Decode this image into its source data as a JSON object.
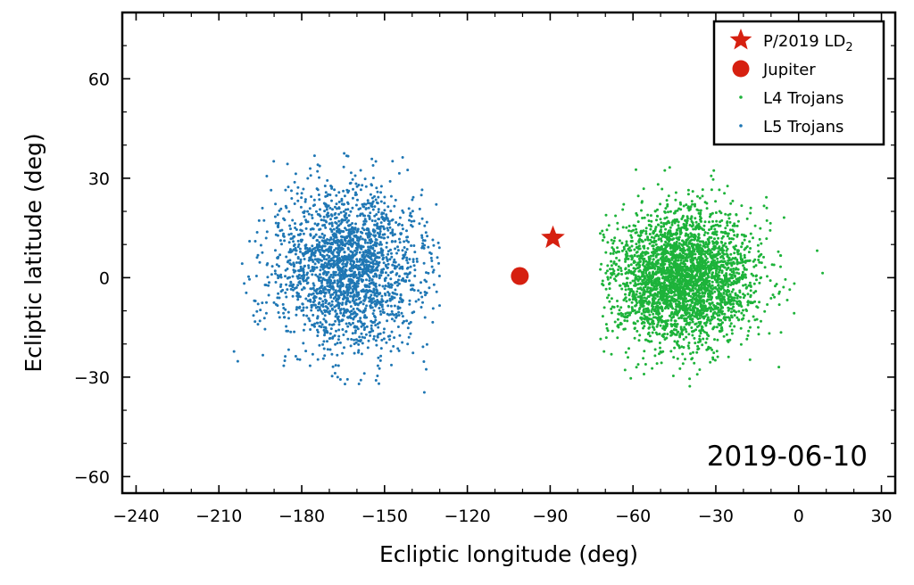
{
  "chart_data": {
    "type": "scatter",
    "xlabel": "Ecliptic longitude (deg)",
    "ylabel": "Ecliptic latitude (deg)",
    "xlim": [
      -245,
      35
    ],
    "ylim": [
      -65,
      80
    ],
    "xticks": [
      -240,
      -210,
      -180,
      -150,
      -120,
      -90,
      -60,
      -30,
      0,
      30
    ],
    "yticks": [
      -60,
      -30,
      0,
      30,
      60
    ],
    "xtick_labels": [
      "−240",
      "−210",
      "−180",
      "−150",
      "−120",
      "−90",
      "−60",
      "−30",
      "0",
      "30"
    ],
    "ytick_labels": [
      "−60",
      "−30",
      "0",
      "30",
      "60"
    ],
    "annotation": "2019-06-10",
    "grid": false,
    "legend_position": "top-right",
    "series": [
      {
        "name": "P/2019 LD₂",
        "marker": "star",
        "color": "#d62010",
        "points": [
          [
            -89,
            12
          ]
        ]
      },
      {
        "name": "Jupiter",
        "marker": "circle",
        "color": "#d62010",
        "points": [
          [
            -101,
            0.5
          ]
        ]
      },
      {
        "name": "L4 Trojans",
        "marker": "dot",
        "color": "#1db33a",
        "cloud": {
          "center": [
            -42,
            0
          ],
          "spread": [
            13,
            10
          ],
          "x_range": [
            -72,
            10
          ],
          "y_range": [
            -38,
            36
          ],
          "count": 3200
        }
      },
      {
        "name": "L5 Trojans",
        "marker": "dot",
        "color": "#1f77b4",
        "cloud": {
          "center": [
            -163,
            3
          ],
          "spread": [
            13,
            12
          ],
          "x_range": [
            -205,
            -130
          ],
          "y_range": [
            -39,
            38
          ],
          "count": 2200
        }
      }
    ]
  },
  "legend": {
    "items": [
      {
        "label": "P/2019 LD",
        "sub": "2",
        "color": "#d62010",
        "marker": "star"
      },
      {
        "label": "Jupiter",
        "sub": "",
        "color": "#d62010",
        "marker": "circle"
      },
      {
        "label": "L4 Trojans",
        "sub": "",
        "color": "#1db33a",
        "marker": "dot"
      },
      {
        "label": "L5 Trojans",
        "sub": "",
        "color": "#1f77b4",
        "marker": "dot"
      }
    ]
  }
}
